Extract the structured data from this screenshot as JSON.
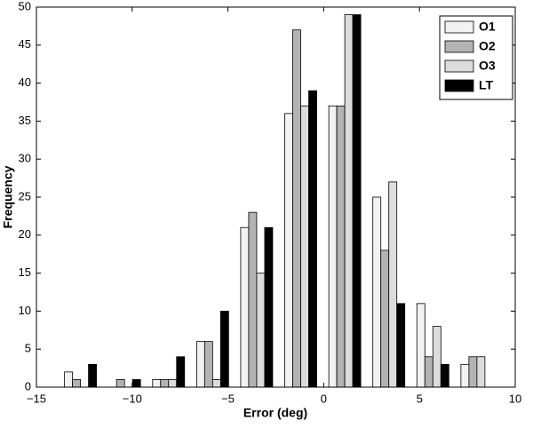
{
  "chart_data": {
    "type": "bar",
    "xlabel": "Error (deg)",
    "ylabel": "Frequency",
    "x": [
      -12.7,
      -10.4,
      -8.1,
      -5.8,
      -3.5,
      -1.2,
      1.1,
      3.4,
      5.7,
      8.0
    ],
    "series": [
      {
        "name": "O1",
        "color": "#f2f2f2",
        "values": [
          2,
          0,
          1,
          6,
          21,
          36,
          37,
          25,
          11,
          3
        ]
      },
      {
        "name": "O2",
        "color": "#b3b3b3",
        "values": [
          1,
          1,
          1,
          6,
          23,
          47,
          37,
          18,
          4,
          4
        ]
      },
      {
        "name": "O3",
        "color": "#dcdcdc",
        "values": [
          0,
          0,
          1,
          1,
          15,
          37,
          49,
          27,
          8,
          4
        ]
      },
      {
        "name": "LT",
        "color": "#000000",
        "values": [
          3,
          1,
          4,
          10,
          21,
          39,
          49,
          11,
          3,
          0
        ]
      }
    ],
    "xlim": [
      -15,
      10
    ],
    "xticks": [
      {
        "value": -15,
        "label": "−15"
      },
      {
        "value": -10,
        "label": "−10"
      },
      {
        "value": -5,
        "label": "−5"
      },
      0,
      5,
      10
    ],
    "ylim": [
      0,
      50
    ],
    "yticks": [
      0,
      5,
      10,
      15,
      20,
      25,
      30,
      35,
      40,
      45,
      50
    ],
    "legend": "top-right"
  }
}
